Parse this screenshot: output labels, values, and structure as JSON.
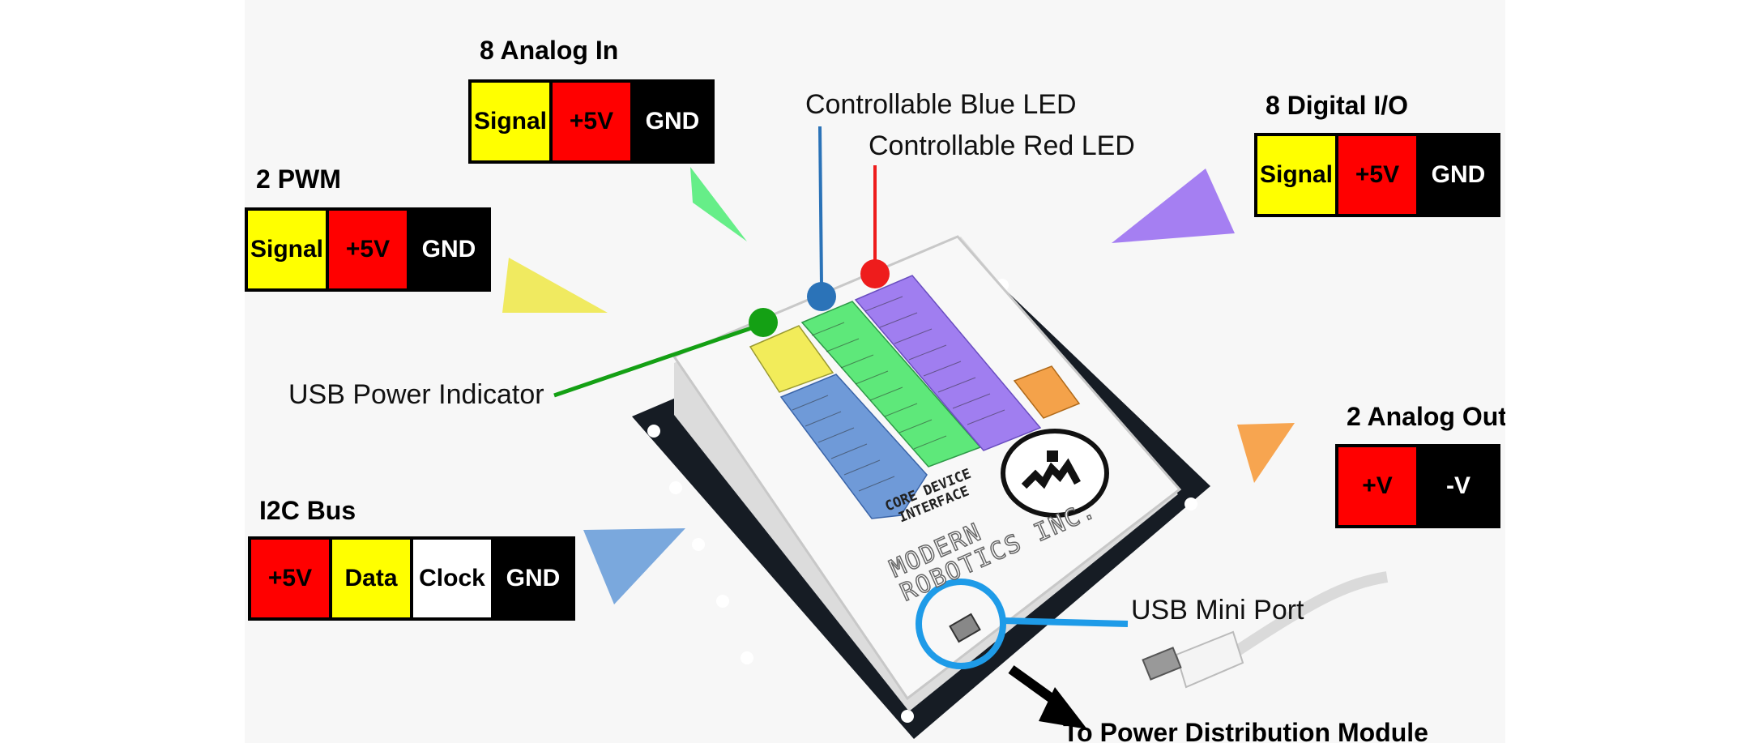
{
  "groups": {
    "analog_in": {
      "title": "8 Analog In",
      "pins": [
        "Signal",
        "+5V",
        "GND"
      ]
    },
    "pwm": {
      "title": "2 PWM",
      "pins": [
        "Signal",
        "+5V",
        "GND"
      ]
    },
    "digital_io": {
      "title": "8 Digital I/O",
      "pins": [
        "Signal",
        "+5V",
        "GND"
      ]
    },
    "analog_out": {
      "title": "2 Analog Out",
      "pins": [
        "+V",
        "-V"
      ]
    },
    "i2c": {
      "title": "I2C Bus",
      "pins": [
        "+5V",
        "Data",
        "Clock",
        "GND"
      ]
    }
  },
  "callouts": {
    "blue_led": "Controllable Blue LED",
    "red_led": "Controllable Red LED",
    "usb_power": "USB Power Indicator",
    "usb_port": "USB Mini Port",
    "power_module": "To Power Distribution Module"
  },
  "device": {
    "line1": "CORE DEVICE",
    "line2": "INTERFACE",
    "brand1": "MODERN",
    "brand2": "ROBOTICS INC."
  },
  "colors": {
    "signal": "#ffff00",
    "power": "#ff0000",
    "ground": "#000000",
    "analog_port": "#5ee87a",
    "digital_port": "#a07ef0",
    "i2c_port": "#6f9ad8",
    "pwm_port": "#f2ec5a",
    "analog_out_port": "#f4a24a",
    "blue_led": "#2b73b8",
    "red_led": "#ee1c1c",
    "green_led": "#14a014",
    "usb_ring": "#1e9be8"
  }
}
